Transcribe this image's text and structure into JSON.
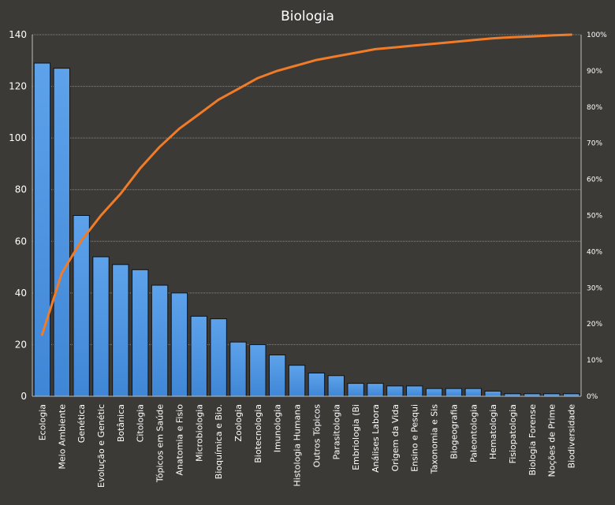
{
  "chart_data": {
    "type": "bar",
    "title": "Biologia",
    "categories": [
      "Ecologia",
      "Meio Ambiente",
      "Genética",
      "Evolução e Genétic",
      "Botânica",
      "Citologia",
      "Tópicos em Saúde",
      "Anatomia e Fisio",
      "Microbiologia",
      "Bioquímica e Bio.",
      "Zoologia",
      "Biotecnologia",
      "Imunologia",
      "Histologia Humana",
      "Outros Tópicos",
      "Parasitologia",
      "Embriologia (Bi",
      "Análises Labora",
      "Origem da Vida",
      "Ensino e Pesqui",
      "Taxonomia e Sis",
      "Biogeografia",
      "Paleontologia",
      "Hematologia",
      "Fisiopatologia",
      "Biologia Forense",
      "Noções de Prime",
      "Biodiversidade"
    ],
    "series": [
      {
        "type": "bar",
        "axis": "left",
        "values": [
          129,
          127,
          70,
          54,
          51,
          49,
          43,
          40,
          31,
          30,
          21,
          20,
          16,
          12,
          9,
          8,
          5,
          5,
          4,
          4,
          3,
          3,
          3,
          2,
          1,
          1,
          1,
          1
        ]
      },
      {
        "type": "line",
        "axis": "right",
        "values": [
          17,
          34,
          43,
          50,
          56,
          63,
          69,
          74,
          78,
          82,
          85,
          88,
          90,
          91.5,
          93,
          94,
          95,
          96,
          96.5,
          97,
          97.5,
          98,
          98.5,
          99,
          99.3,
          99.5,
          99.8,
          100
        ]
      }
    ],
    "ylim": [
      0,
      140
    ],
    "yticks": [
      "0",
      "20",
      "40",
      "60",
      "80",
      "100",
      "120",
      "140"
    ],
    "y2lim": [
      0,
      100
    ],
    "y2ticks": [
      "0%",
      "10%",
      "20%",
      "30%",
      "40%",
      "50%",
      "60%",
      "70%",
      "80%",
      "90%",
      "100%"
    ],
    "grid": true,
    "colors": {
      "bar": "#4a90e2",
      "line": "#f07b28",
      "background": "#3b3a37",
      "grid": "#8a8a86"
    }
  }
}
